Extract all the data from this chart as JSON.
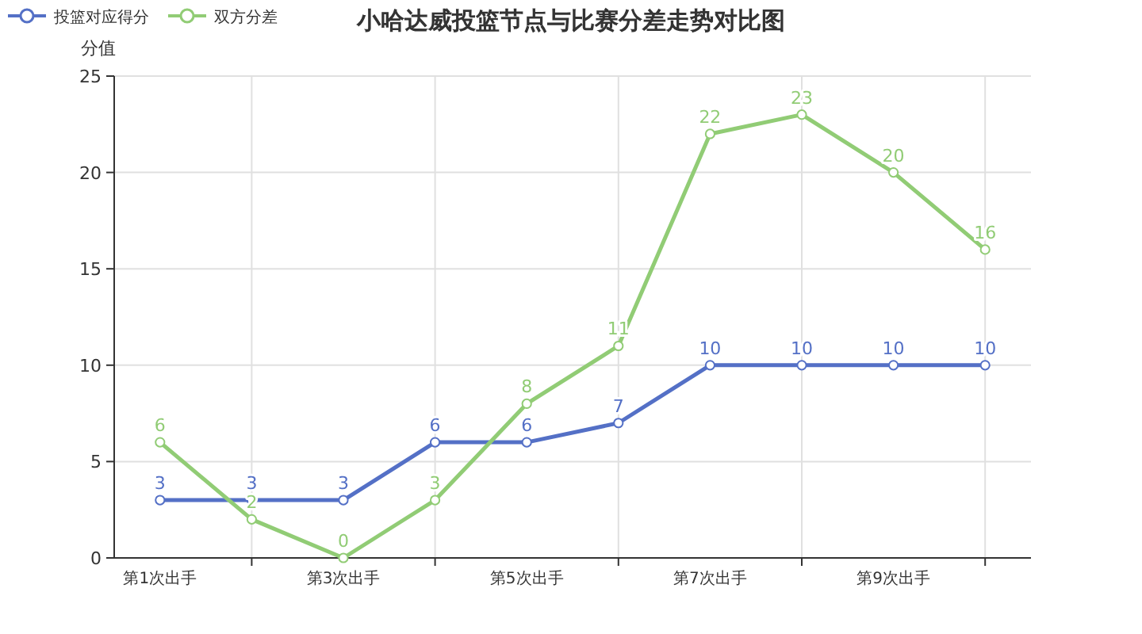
{
  "chart_data": {
    "type": "line",
    "title": "小哈达威投篮节点与比赛分差走势对比图",
    "ylabel": "分值",
    "categories": [
      "第1次出手",
      null,
      "第3次出手",
      null,
      "第5次出手",
      null,
      "第7次出手",
      null,
      "第9次出手",
      null
    ],
    "series": [
      {
        "name": "投篮对应得分",
        "color": "#5470c6",
        "values": [
          3,
          3,
          3,
          6,
          6,
          7,
          10,
          10,
          10,
          10
        ]
      },
      {
        "name": "双方分差",
        "color": "#91cc75",
        "values": [
          6,
          2,
          0,
          3,
          8,
          11,
          22,
          23,
          20,
          16
        ]
      }
    ],
    "ylim": [
      0,
      25
    ],
    "yticks": [
      0,
      5,
      10,
      15,
      20,
      25
    ],
    "grid": true,
    "legend": "top left",
    "marker": "circle",
    "line_style": "solid",
    "data_labels": true
  }
}
